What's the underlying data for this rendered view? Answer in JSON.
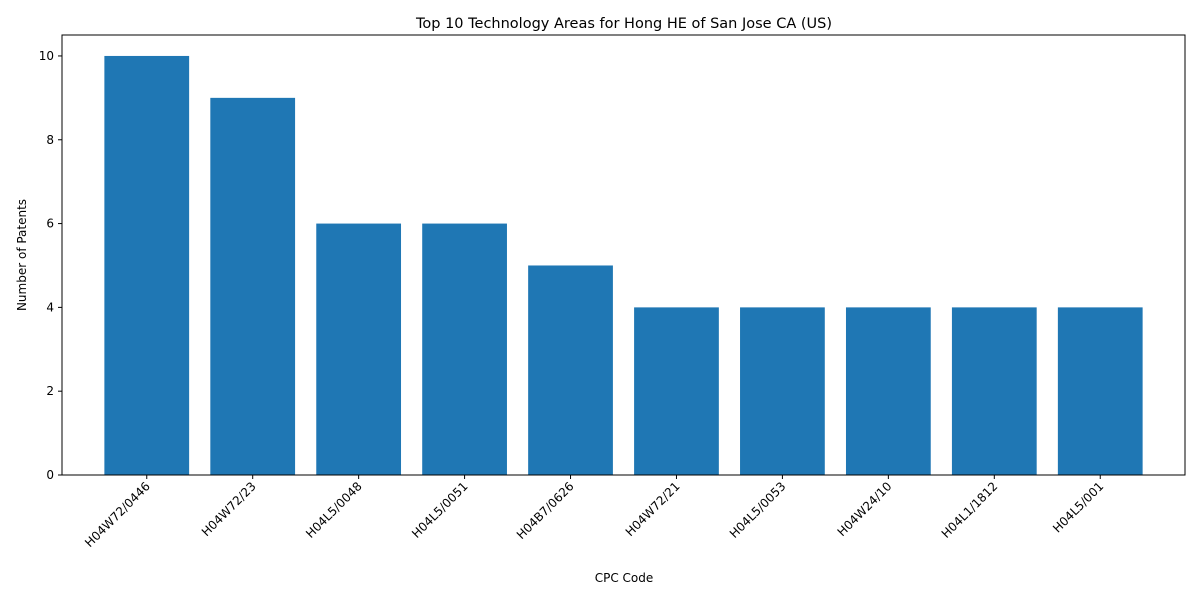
{
  "chart_data": {
    "type": "bar",
    "title": "Top 10 Technology Areas for Hong HE of San Jose CA (US)",
    "xlabel": "CPC Code",
    "ylabel": "Number of Patents",
    "categories": [
      "H04W72/0446",
      "H04W72/23",
      "H04L5/0048",
      "H04L5/0051",
      "H04B7/0626",
      "H04W72/21",
      "H04L5/0053",
      "H04W24/10",
      "H04L1/1812",
      "H04L5/001"
    ],
    "values": [
      10,
      9,
      6,
      6,
      5,
      4,
      4,
      4,
      4,
      4
    ],
    "ylim": [
      0,
      10.5
    ],
    "yticks": [
      0,
      2,
      4,
      6,
      8,
      10
    ],
    "bar_color": "#1f77b4",
    "grid": false,
    "legend": "none"
  }
}
